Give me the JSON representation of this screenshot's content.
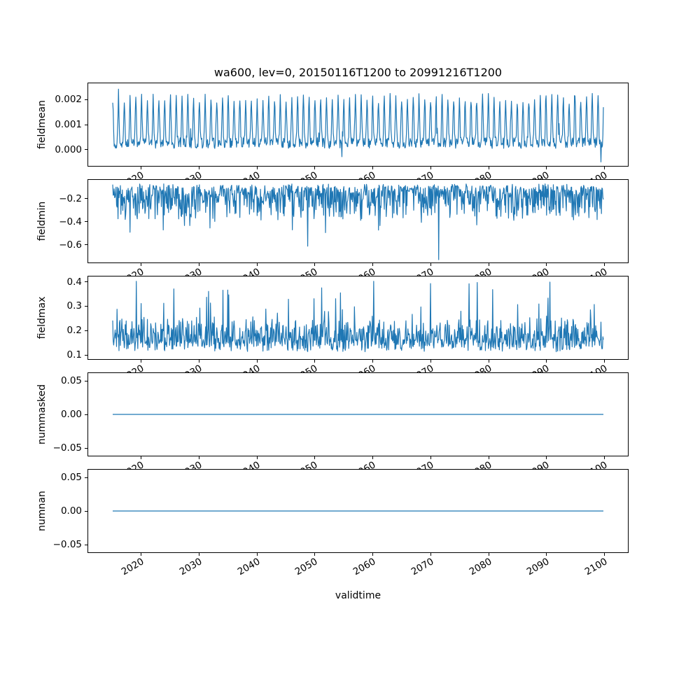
{
  "figure": {
    "title": "wa600, lev=0, 20150116T1200 to 20991216T1200",
    "xlabel": "validtime",
    "background": "#ffffff",
    "line_color": "#1f77b4",
    "axis_color": "#000000",
    "xlim": [
      2010.8,
      2104.2
    ],
    "xticks": [
      2020,
      2030,
      2040,
      2050,
      2060,
      2070,
      2080,
      2090,
      2100
    ],
    "xtick_labels": [
      "2020",
      "2030",
      "2040",
      "2050",
      "2060",
      "2070",
      "2080",
      "2090",
      "2100"
    ]
  },
  "chart_data": [
    {
      "type": "line",
      "ylabel": "fieldmean",
      "xlim": [
        2010.8,
        2104.2
      ],
      "ylim": [
        -0.00068,
        0.00268
      ],
      "ytick_values": [
        0.0,
        0.001,
        0.002
      ],
      "ytick_labels": [
        "0.000",
        "0.001",
        "0.002"
      ],
      "series_summary": {
        "baseline": 0.0003,
        "annual_peak": 0.002,
        "max": 0.0026,
        "min": -0.0005
      },
      "model": {
        "kind": "seasonal",
        "seed": 101,
        "n": 1020,
        "x0": 2015.042,
        "dx": 0.0833333,
        "base": 0.00025,
        "amp": 0.0018,
        "power": 5,
        "noise": 0.00022,
        "spike_prob": 0.02,
        "spike_amp": 0.0006,
        "dip_prob": 0.004,
        "dip_amp": 0.0007,
        "clamp_min": -0.00055,
        "clamp_max": 0.0026,
        "force_index": 1014,
        "force_value": -0.00052
      }
    },
    {
      "type": "line",
      "ylabel": "fieldmin",
      "xlim": [
        2010.8,
        2104.2
      ],
      "ylim": [
        -0.76,
        -0.03
      ],
      "ytick_values": [
        -0.2,
        -0.4,
        -0.6
      ],
      "ytick_labels": [
        "−0.2",
        "−0.4",
        "−0.6"
      ],
      "series_summary": {
        "baseline": -0.2,
        "typical_range": [
          -0.35,
          -0.08
        ],
        "min": -0.735
      },
      "model": {
        "kind": "skewmin",
        "seed": 202,
        "n": 1020,
        "x0": 2015.042,
        "dx": 0.0833333,
        "base": -0.09,
        "scale": 0.28,
        "jitter": 0.05,
        "spike_prob": 0.035,
        "spike_amp": 0.32,
        "clamp_max": -0.05,
        "force_index": 677,
        "force_value": -0.735
      }
    },
    {
      "type": "line",
      "ylabel": "fieldmax",
      "xlim": [
        2010.8,
        2104.2
      ],
      "ylim": [
        0.08,
        0.425
      ],
      "ytick_values": [
        0.1,
        0.2,
        0.3,
        0.4
      ],
      "ytick_labels": [
        "0.1",
        "0.2",
        "0.3",
        "0.4"
      ],
      "series_summary": {
        "baseline": 0.2,
        "typical_range": [
          0.12,
          0.28
        ],
        "max": 0.405
      },
      "model": {
        "kind": "skewmax",
        "seed": 303,
        "n": 1020,
        "x0": 2015.042,
        "dx": 0.0833333,
        "base": 0.135,
        "scale": 0.105,
        "jitter": 0.05,
        "spike_prob": 0.05,
        "spike_base": 0.06,
        "spike_amp": 0.17,
        "clamp_min": 0.1,
        "clamp_max": 0.405,
        "force_index": 757,
        "force_value": 0.4
      }
    },
    {
      "type": "line",
      "ylabel": "nummasked",
      "xlim": [
        2010.8,
        2104.2
      ],
      "ylim": [
        -0.0625,
        0.0625
      ],
      "ytick_values": [
        0.05,
        0.0,
        -0.05
      ],
      "ytick_labels": [
        "0.05",
        "0.00",
        "−0.05"
      ],
      "series_summary": {
        "constant_value": 0.0
      },
      "model": {
        "kind": "constant",
        "seed": 1,
        "n": 1020,
        "x0": 2015.042,
        "dx": 0.0833333,
        "value": 0
      }
    },
    {
      "type": "line",
      "ylabel": "numnan",
      "xlim": [
        2010.8,
        2104.2
      ],
      "ylim": [
        -0.0625,
        0.0625
      ],
      "ytick_values": [
        0.05,
        0.0,
        -0.05
      ],
      "ytick_labels": [
        "0.05",
        "0.00",
        "−0.05"
      ],
      "series_summary": {
        "constant_value": 0.0
      },
      "model": {
        "kind": "constant",
        "seed": 2,
        "n": 1020,
        "x0": 2015.042,
        "dx": 0.0833333,
        "value": 0
      }
    }
  ]
}
